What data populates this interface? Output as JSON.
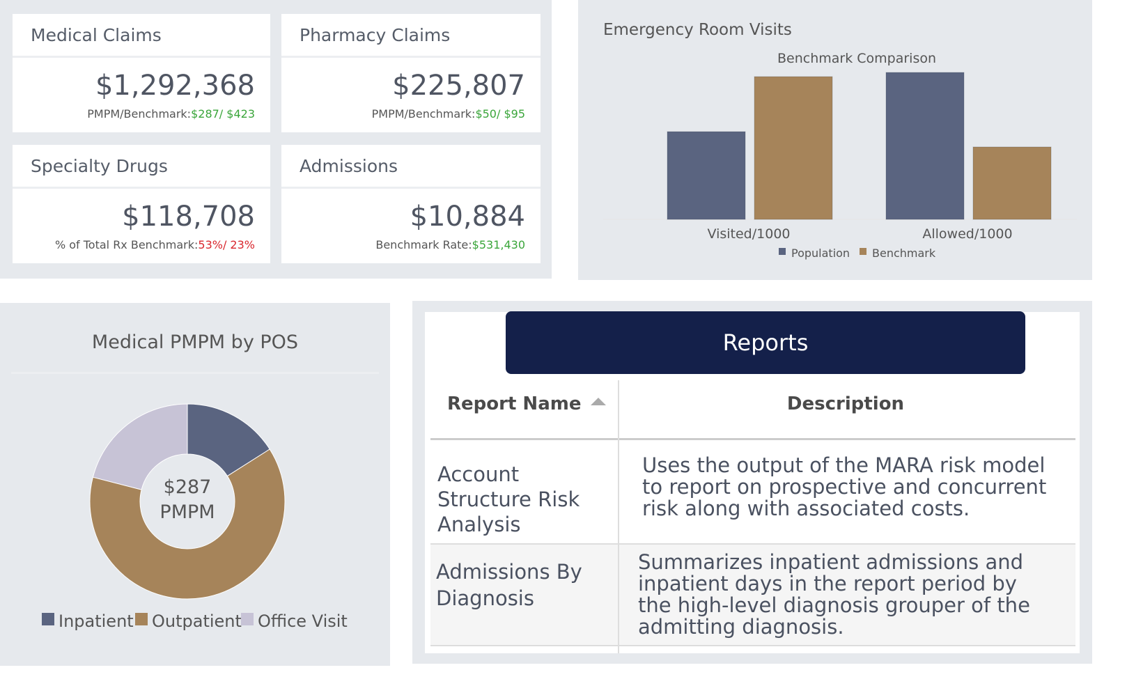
{
  "cards": [
    {
      "title": "Medical Claims",
      "value": "$1,292,368",
      "note_label": "PMPM/Benchmark:",
      "note_value": "$287/ $423",
      "note_color": "#3aa53a"
    },
    {
      "title": "Pharmacy Claims",
      "value": "$225,807",
      "note_label": "PMPM/Benchmark:",
      "note_value": "$50/ $95",
      "note_color": "#3aa53a"
    },
    {
      "title": "Specialty Drugs",
      "value": "$118,708",
      "note_label": "% of Total Rx Benchmark:",
      "note_value": "53%/ 23%",
      "note_color": "#d9272e"
    },
    {
      "title": "Admissions",
      "value": "$10,884",
      "note_label": "Benchmark Rate:",
      "note_value": "$531,430",
      "note_color": "#3aa53a"
    }
  ],
  "chart_data": [
    {
      "type": "bar",
      "title": "Emergency Room Visits",
      "subtitle": "Benchmark Comparison",
      "categories": [
        "Visited/1000",
        "Allowed/1000"
      ],
      "series": [
        {
          "name": "Population",
          "color": "#5a6480",
          "values": [
            126,
            211
          ]
        },
        {
          "name": "Benchmark",
          "color": "#a6845a",
          "values": [
            205,
            104
          ]
        }
      ],
      "ylim": [
        0,
        215
      ],
      "legend": "bottom"
    },
    {
      "type": "pie",
      "title": "Medical PMPM by POS",
      "center_label": "$287",
      "center_sublabel": "PMPM",
      "categories": [
        "Inpatient",
        "Outpatient",
        "Office Visit"
      ],
      "values": [
        16,
        63,
        21
      ],
      "colors": [
        "#5a6480",
        "#a6845a",
        "#c7c3d6"
      ],
      "legend": "bottom"
    }
  ],
  "reports": {
    "title": "Reports",
    "columns": [
      "Report Name",
      "Description"
    ],
    "rows": [
      [
        "Account Structure Risk Analysis",
        "Uses the output of the MARA risk model to report on prospective and concurrent risk along with associated costs."
      ],
      [
        "Admissions By Diagnosis",
        "Summarizes inpatient admissions and inpatient days in the report period by the high-level diagnosis grouper of the admitting diagnosis."
      ]
    ]
  }
}
